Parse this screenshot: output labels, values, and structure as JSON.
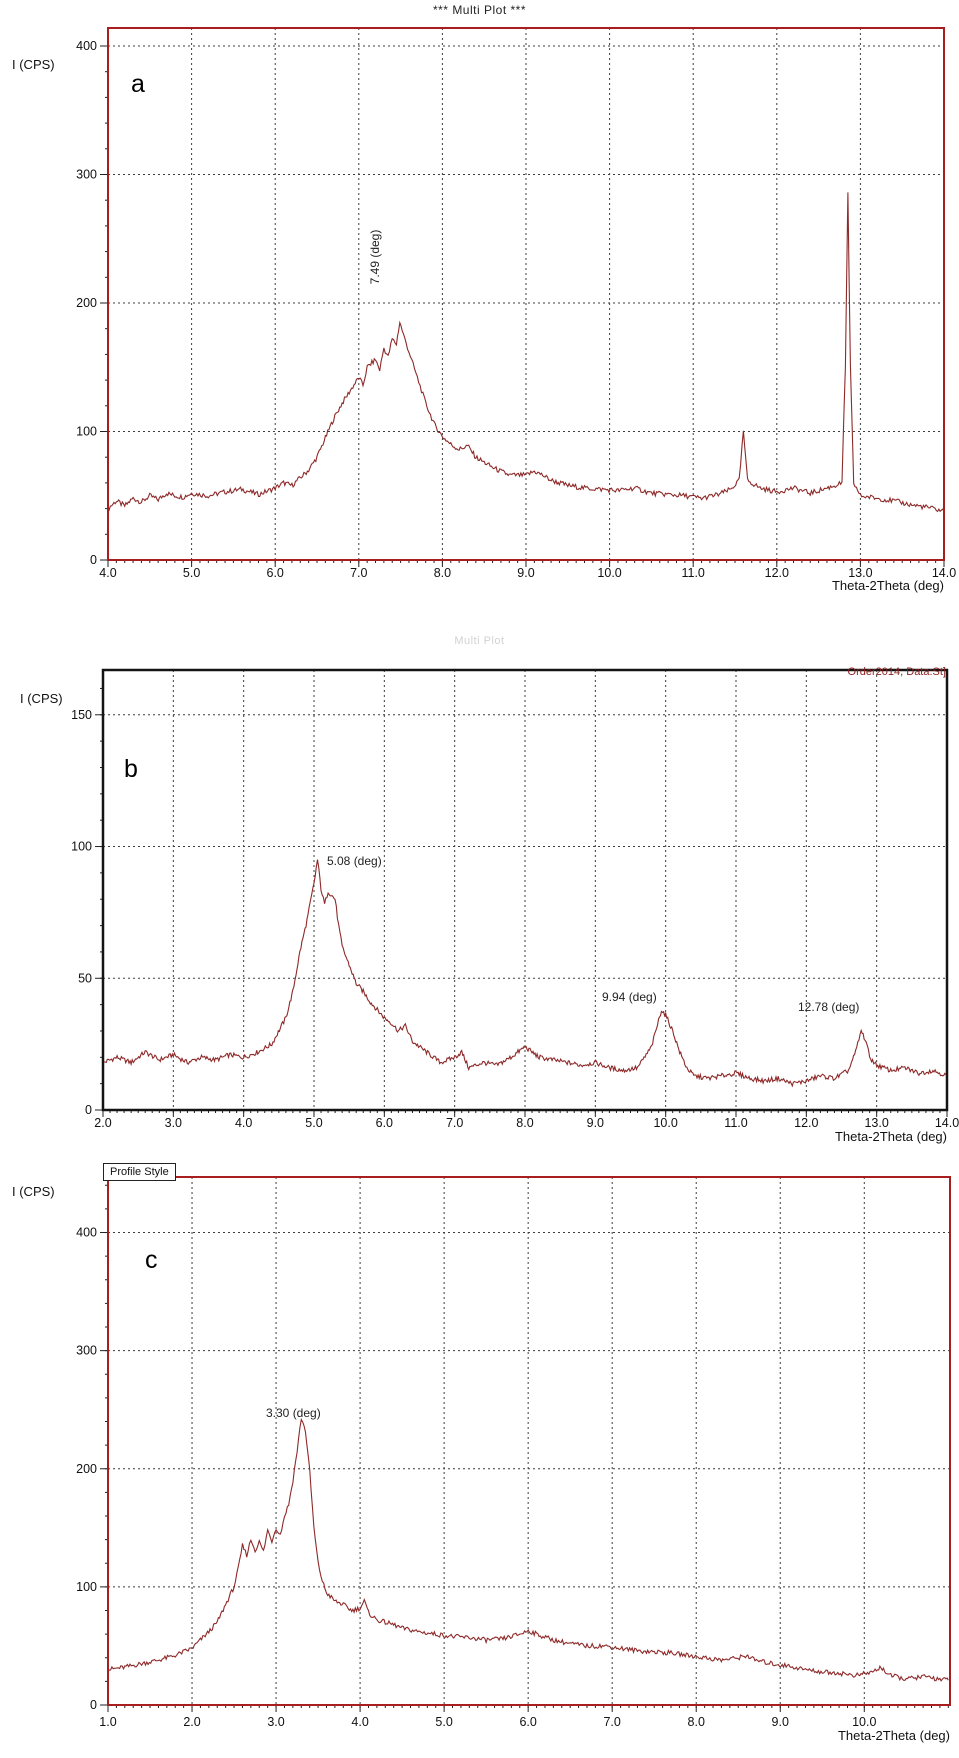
{
  "chart_data": [
    {
      "type": "line",
      "panel_label": "a",
      "title": "***  Multi Plot  ***",
      "xlabel": "Theta-2Theta (deg)",
      "ylabel": "I (CPS)",
      "xlim": [
        4.0,
        14.0
      ],
      "ylim": [
        0,
        414
      ],
      "x_tick_labels": [
        "4.0",
        "5.0",
        "6.0",
        "7.0",
        "8.0",
        "9.0",
        "10.0",
        "11.0",
        "12.0",
        "13.0",
        "14.0"
      ],
      "y_ticks": [
        0,
        100,
        200,
        300,
        400
      ],
      "x_minor_step": 0.1,
      "y_minor_step": 20,
      "grid": "dashed",
      "line_color": "#8e2929",
      "frame_color": "#a81e1e",
      "noise_amp": 4,
      "annotations": [
        {
          "text": "7.49 (deg)",
          "x": 7.15,
          "y": 235,
          "rotated": true
        }
      ],
      "points": [
        [
          4.0,
          40
        ],
        [
          4.1,
          46
        ],
        [
          4.2,
          42
        ],
        [
          4.3,
          48
        ],
        [
          4.4,
          45
        ],
        [
          4.5,
          50
        ],
        [
          4.6,
          47
        ],
        [
          4.7,
          52
        ],
        [
          4.8,
          50
        ],
        [
          4.9,
          49
        ],
        [
          5.0,
          52
        ],
        [
          5.2,
          50
        ],
        [
          5.4,
          53
        ],
        [
          5.6,
          55
        ],
        [
          5.8,
          51
        ],
        [
          6.0,
          56
        ],
        [
          6.1,
          60
        ],
        [
          6.2,
          58
        ],
        [
          6.3,
          64
        ],
        [
          6.4,
          70
        ],
        [
          6.5,
          80
        ],
        [
          6.6,
          95
        ],
        [
          6.7,
          110
        ],
        [
          6.8,
          122
        ],
        [
          6.9,
          132
        ],
        [
          7.0,
          142
        ],
        [
          7.05,
          136
        ],
        [
          7.1,
          150
        ],
        [
          7.2,
          156
        ],
        [
          7.25,
          148
        ],
        [
          7.3,
          165
        ],
        [
          7.35,
          158
        ],
        [
          7.4,
          172
        ],
        [
          7.45,
          168
        ],
        [
          7.49,
          185
        ],
        [
          7.55,
          172
        ],
        [
          7.6,
          162
        ],
        [
          7.65,
          152
        ],
        [
          7.7,
          142
        ],
        [
          7.75,
          132
        ],
        [
          7.8,
          122
        ],
        [
          7.9,
          106
        ],
        [
          8.0,
          96
        ],
        [
          8.1,
          90
        ],
        [
          8.2,
          86
        ],
        [
          8.3,
          89
        ],
        [
          8.4,
          80
        ],
        [
          8.5,
          76
        ],
        [
          8.6,
          72
        ],
        [
          8.7,
          69
        ],
        [
          8.8,
          66
        ],
        [
          9.0,
          66
        ],
        [
          9.1,
          69
        ],
        [
          9.2,
          66
        ],
        [
          9.3,
          62
        ],
        [
          9.4,
          60
        ],
        [
          9.5,
          58
        ],
        [
          9.7,
          56
        ],
        [
          9.9,
          55
        ],
        [
          10.1,
          54
        ],
        [
          10.3,
          56
        ],
        [
          10.5,
          52
        ],
        [
          10.7,
          51
        ],
        [
          10.9,
          50
        ],
        [
          11.1,
          48
        ],
        [
          11.3,
          51
        ],
        [
          11.45,
          55
        ],
        [
          11.55,
          62
        ],
        [
          11.6,
          100
        ],
        [
          11.65,
          62
        ],
        [
          11.8,
          56
        ],
        [
          12.0,
          53
        ],
        [
          12.2,
          56
        ],
        [
          12.4,
          52
        ],
        [
          12.6,
          56
        ],
        [
          12.7,
          58
        ],
        [
          12.78,
          60
        ],
        [
          12.82,
          150
        ],
        [
          12.85,
          285
        ],
        [
          12.88,
          150
        ],
        [
          12.92,
          60
        ],
        [
          13.0,
          50
        ],
        [
          13.2,
          48
        ],
        [
          13.4,
          46
        ],
        [
          13.6,
          43
        ],
        [
          13.8,
          41
        ],
        [
          14.0,
          38
        ]
      ]
    },
    {
      "type": "line",
      "panel_label": "b",
      "faint_title": "Multi Plot",
      "corner_text": "Order2014, Data:St]",
      "xlabel": "Theta-2Theta (deg)",
      "ylabel": "I (CPS)",
      "xlim": [
        2.0,
        14.0
      ],
      "ylim": [
        0,
        167
      ],
      "x_tick_labels": [
        "2.0",
        "3.0",
        "4.0",
        "5.0",
        "6.0",
        "7.0",
        "8.0",
        "9.0",
        "10.0",
        "11.0",
        "12.0",
        "13.0",
        "14.0"
      ],
      "y_ticks": [
        0,
        50,
        100,
        150
      ],
      "x_minor_step": 0.1,
      "y_minor_step": 10,
      "grid": "dashed",
      "line_color": "#8e2929",
      "frame_color": "#141414",
      "noise_amp": 1.8,
      "annotations": [
        {
          "text": "5.08 (deg)",
          "x": 5.19,
          "y": 94,
          "rotated": false
        },
        {
          "text": "9.94 (deg)",
          "x": 9.17,
          "y": 42,
          "rotated": false
        },
        {
          "text": "12.78 (deg)",
          "x": 11.91,
          "y": 39,
          "rotated": false
        }
      ],
      "points": [
        [
          2.0,
          18
        ],
        [
          2.2,
          20
        ],
        [
          2.4,
          18
        ],
        [
          2.6,
          22
        ],
        [
          2.8,
          19
        ],
        [
          3.0,
          21
        ],
        [
          3.2,
          18
        ],
        [
          3.4,
          20
        ],
        [
          3.6,
          19
        ],
        [
          3.8,
          21
        ],
        [
          4.0,
          20
        ],
        [
          4.2,
          22
        ],
        [
          4.4,
          25
        ],
        [
          4.6,
          35
        ],
        [
          4.7,
          45
        ],
        [
          4.8,
          60
        ],
        [
          4.9,
          72
        ],
        [
          5.0,
          86
        ],
        [
          5.05,
          95
        ],
        [
          5.1,
          84
        ],
        [
          5.15,
          78
        ],
        [
          5.2,
          83
        ],
        [
          5.3,
          80
        ],
        [
          5.35,
          70
        ],
        [
          5.4,
          62
        ],
        [
          5.5,
          55
        ],
        [
          5.6,
          48
        ],
        [
          5.7,
          45
        ],
        [
          5.8,
          41
        ],
        [
          5.9,
          38
        ],
        [
          6.0,
          35
        ],
        [
          6.1,
          33
        ],
        [
          6.2,
          30
        ],
        [
          6.3,
          32
        ],
        [
          6.4,
          26
        ],
        [
          6.5,
          24
        ],
        [
          6.6,
          22
        ],
        [
          6.7,
          20
        ],
        [
          6.8,
          18
        ],
        [
          7.0,
          20
        ],
        [
          7.1,
          22
        ],
        [
          7.2,
          16
        ],
        [
          7.4,
          18
        ],
        [
          7.6,
          17
        ],
        [
          7.8,
          20
        ],
        [
          7.9,
          22
        ],
        [
          8.0,
          24
        ],
        [
          8.1,
          22
        ],
        [
          8.2,
          20
        ],
        [
          8.4,
          19
        ],
        [
          8.6,
          18
        ],
        [
          8.8,
          17
        ],
        [
          9.0,
          18
        ],
        [
          9.2,
          16
        ],
        [
          9.4,
          15
        ],
        [
          9.6,
          16
        ],
        [
          9.8,
          24
        ],
        [
          9.9,
          34
        ],
        [
          9.94,
          38
        ],
        [
          10.0,
          36
        ],
        [
          10.1,
          30
        ],
        [
          10.2,
          22
        ],
        [
          10.3,
          16
        ],
        [
          10.4,
          13
        ],
        [
          10.6,
          12
        ],
        [
          10.8,
          13
        ],
        [
          11.0,
          14
        ],
        [
          11.2,
          12
        ],
        [
          11.4,
          11
        ],
        [
          11.6,
          12
        ],
        [
          11.8,
          10
        ],
        [
          12.0,
          11
        ],
        [
          12.2,
          13
        ],
        [
          12.4,
          12
        ],
        [
          12.6,
          15
        ],
        [
          12.7,
          22
        ],
        [
          12.78,
          30
        ],
        [
          12.85,
          26
        ],
        [
          12.9,
          20
        ],
        [
          13.0,
          17
        ],
        [
          13.2,
          15
        ],
        [
          13.4,
          16
        ],
        [
          13.6,
          14
        ],
        [
          13.8,
          15
        ],
        [
          14.0,
          13
        ]
      ]
    },
    {
      "type": "line",
      "panel_label": "c",
      "button_label": "Profile Style",
      "xlabel": "Theta-2Theta (deg)",
      "ylabel": "I (CPS)",
      "xlim": [
        1.0,
        11.02
      ],
      "ylim": [
        0,
        447
      ],
      "x_tick_labels": [
        "1.0",
        "2.0",
        "3.0",
        "4.0",
        "5.0",
        "6.0",
        "7.0",
        "8.0",
        "9.0",
        "10.0"
      ],
      "y_ticks": [
        0,
        100,
        200,
        300,
        400
      ],
      "x_minor_step": 0.1,
      "y_minor_step": 20,
      "grid": "dashed",
      "line_color": "#8e2929",
      "frame_color": "#a81e1e",
      "noise_amp": 4,
      "annotations": [
        {
          "text": "3.30 (deg)",
          "x": 2.88,
          "y": 258,
          "rotated": false
        }
      ],
      "points": [
        [
          1.0,
          30
        ],
        [
          1.2,
          32
        ],
        [
          1.4,
          35
        ],
        [
          1.6,
          38
        ],
        [
          1.8,
          42
        ],
        [
          2.0,
          48
        ],
        [
          2.1,
          55
        ],
        [
          2.2,
          62
        ],
        [
          2.3,
          70
        ],
        [
          2.4,
          85
        ],
        [
          2.5,
          100
        ],
        [
          2.55,
          115
        ],
        [
          2.6,
          135
        ],
        [
          2.65,
          127
        ],
        [
          2.7,
          140
        ],
        [
          2.75,
          131
        ],
        [
          2.8,
          138
        ],
        [
          2.85,
          130
        ],
        [
          2.9,
          148
        ],
        [
          2.95,
          139
        ],
        [
          3.0,
          150
        ],
        [
          3.05,
          144
        ],
        [
          3.1,
          160
        ],
        [
          3.15,
          170
        ],
        [
          3.2,
          190
        ],
        [
          3.25,
          215
        ],
        [
          3.3,
          243
        ],
        [
          3.35,
          232
        ],
        [
          3.4,
          198
        ],
        [
          3.45,
          150
        ],
        [
          3.5,
          120
        ],
        [
          3.55,
          105
        ],
        [
          3.6,
          95
        ],
        [
          3.7,
          88
        ],
        [
          3.8,
          85
        ],
        [
          3.9,
          80
        ],
        [
          4.0,
          82
        ],
        [
          4.05,
          88
        ],
        [
          4.1,
          78
        ],
        [
          4.2,
          72
        ],
        [
          4.3,
          70
        ],
        [
          4.4,
          68
        ],
        [
          4.5,
          65
        ],
        [
          4.7,
          62
        ],
        [
          4.9,
          60
        ],
        [
          5.1,
          58
        ],
        [
          5.3,
          57
        ],
        [
          5.5,
          55
        ],
        [
          5.7,
          56
        ],
        [
          5.9,
          60
        ],
        [
          6.0,
          63
        ],
        [
          6.1,
          60
        ],
        [
          6.3,
          55
        ],
        [
          6.5,
          52
        ],
        [
          6.7,
          50
        ],
        [
          6.9,
          50
        ],
        [
          7.1,
          48
        ],
        [
          7.3,
          46
        ],
        [
          7.5,
          45
        ],
        [
          7.7,
          44
        ],
        [
          7.9,
          42
        ],
        [
          8.1,
          40
        ],
        [
          8.3,
          38
        ],
        [
          8.5,
          40
        ],
        [
          8.6,
          42
        ],
        [
          8.7,
          38
        ],
        [
          8.9,
          35
        ],
        [
          9.1,
          33
        ],
        [
          9.3,
          30
        ],
        [
          9.5,
          28
        ],
        [
          9.7,
          27
        ],
        [
          9.9,
          25
        ],
        [
          10.1,
          28
        ],
        [
          10.2,
          32
        ],
        [
          10.3,
          25
        ],
        [
          10.5,
          22
        ],
        [
          10.7,
          24
        ],
        [
          10.9,
          22
        ],
        [
          11.0,
          21
        ]
      ]
    }
  ]
}
